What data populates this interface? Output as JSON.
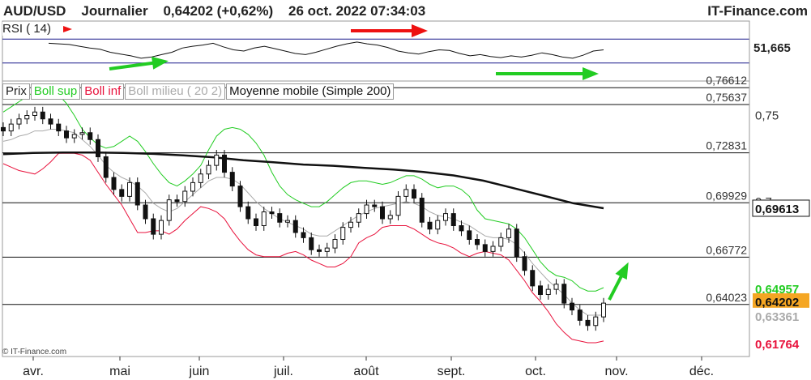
{
  "header": {
    "symbol": "AUD/USD",
    "period": "Journalier",
    "price": "0,64202",
    "change": "(+0,62%)",
    "datetime": "26 oct. 2022 07:34:03",
    "brand": "IT-Finance.com"
  },
  "rsi": {
    "label": "RSI ( 14)",
    "value": "51,665"
  },
  "legend": {
    "prix": "Prix",
    "boll_sup": "Boll sup",
    "boll_inf": "Boll inf",
    "boll_milieu": "Boll milieu ( 20 2)",
    "mm": "Moyenne mobile (Simple 200)"
  },
  "copyright": "© IT-Finance.com",
  "colors": {
    "boll_sup": "#22cc22",
    "boll_inf": "#e8123c",
    "boll_mid": "#aaaaaa",
    "mm200": "#111111",
    "rsi_level": "#1a1a8c",
    "arrow_green": "#22cc22",
    "arrow_red": "#ee1111",
    "price_tag": "#f5a623"
  },
  "chart_data": {
    "type": "candlestick",
    "x_ticks": [
      "avr.",
      "mai",
      "juin",
      "juil.",
      "août",
      "sept.",
      "oct.",
      "nov.",
      "déc."
    ],
    "y_ticks": [
      "0,75",
      "0,7"
    ],
    "levels": [
      "0,76612",
      "0,75637",
      "0,72831",
      "0,69929",
      "0,66772",
      "0,64023"
    ],
    "level_values": [
      0.76612,
      0.75637,
      0.72831,
      0.69929,
      0.66772,
      0.64023
    ],
    "price_tags": [
      {
        "label": "0,69613",
        "value": 0.69613,
        "kind": "mm200"
      },
      {
        "label": "0,64957",
        "value": 0.64957,
        "kind": "boll_sup"
      },
      {
        "label": "0,64202",
        "value": 0.64202,
        "kind": "price"
      },
      {
        "label": "0,63361",
        "value": 0.63361,
        "kind": "boll_mid"
      },
      {
        "label": "0,61764",
        "value": 0.61764,
        "kind": "boll_inf"
      }
    ],
    "y_range": [
      0.61,
      0.77
    ],
    "close_path": [
      0.741,
      0.745,
      0.748,
      0.75,
      0.752,
      0.748,
      0.745,
      0.741,
      0.737,
      0.739,
      0.74,
      0.736,
      0.726,
      0.714,
      0.707,
      0.703,
      0.711,
      0.698,
      0.69,
      0.681,
      0.689,
      0.701,
      0.7,
      0.706,
      0.711,
      0.716,
      0.721,
      0.727,
      0.717,
      0.709,
      0.697,
      0.69,
      0.686,
      0.694,
      0.693,
      0.688,
      0.689,
      0.682,
      0.679,
      0.672,
      0.671,
      0.673,
      0.678,
      0.685,
      0.688,
      0.693,
      0.698,
      0.697,
      0.69,
      0.692,
      0.703,
      0.707,
      0.702,
      0.688,
      0.684,
      0.689,
      0.693,
      0.686,
      0.683,
      0.678,
      0.675,
      0.671,
      0.674,
      0.679,
      0.684,
      0.668,
      0.66,
      0.651,
      0.646,
      0.649,
      0.652,
      0.641,
      0.637,
      0.631,
      0.628,
      0.633,
      0.641
    ],
    "boll_sup_path": [
      0.752,
      0.755,
      0.758,
      0.761,
      0.764,
      0.765,
      0.764,
      0.762,
      0.757,
      0.75,
      0.742,
      0.737,
      0.733,
      0.731,
      0.732,
      0.735,
      0.738,
      0.735,
      0.729,
      0.722,
      0.716,
      0.711,
      0.709,
      0.712,
      0.716,
      0.721,
      0.73,
      0.738,
      0.742,
      0.743,
      0.742,
      0.739,
      0.734,
      0.727,
      0.717,
      0.709,
      0.704,
      0.701,
      0.699,
      0.697,
      0.697,
      0.7,
      0.704,
      0.708,
      0.711,
      0.712,
      0.712,
      0.711,
      0.71,
      0.711,
      0.713,
      0.715,
      0.715,
      0.713,
      0.71,
      0.708,
      0.709,
      0.709,
      0.707,
      0.703,
      0.695,
      0.69,
      0.689,
      0.688,
      0.687,
      0.684,
      0.679,
      0.672,
      0.665,
      0.66,
      0.657,
      0.656,
      0.654,
      0.65,
      0.648,
      0.648,
      0.65
    ],
    "boll_mid_path": [
      0.735,
      0.736,
      0.738,
      0.739,
      0.741,
      0.741,
      0.742,
      0.742,
      0.741,
      0.74,
      0.736,
      0.732,
      0.727,
      0.721,
      0.717,
      0.714,
      0.712,
      0.709,
      0.705,
      0.699,
      0.696,
      0.694,
      0.696,
      0.7,
      0.704,
      0.708,
      0.712,
      0.714,
      0.714,
      0.713,
      0.71,
      0.705,
      0.7,
      0.696,
      0.693,
      0.69,
      0.688,
      0.686,
      0.684,
      0.681,
      0.68,
      0.68,
      0.683,
      0.686,
      0.689,
      0.692,
      0.694,
      0.696,
      0.697,
      0.698,
      0.699,
      0.7,
      0.699,
      0.697,
      0.694,
      0.692,
      0.691,
      0.69,
      0.688,
      0.686,
      0.683,
      0.68,
      0.679,
      0.679,
      0.678,
      0.675,
      0.67,
      0.664,
      0.659,
      0.654,
      0.65,
      0.646,
      0.641,
      0.637,
      0.634,
      0.634,
      0.634
    ],
    "boll_inf_path": [
      0.722,
      0.72,
      0.718,
      0.717,
      0.716,
      0.719,
      0.723,
      0.728,
      0.728,
      0.728,
      0.727,
      0.724,
      0.717,
      0.71,
      0.704,
      0.698,
      0.69,
      0.682,
      0.682,
      0.683,
      0.683,
      0.681,
      0.684,
      0.689,
      0.693,
      0.697,
      0.696,
      0.694,
      0.69,
      0.683,
      0.677,
      0.672,
      0.669,
      0.668,
      0.668,
      0.668,
      0.67,
      0.671,
      0.669,
      0.666,
      0.664,
      0.662,
      0.662,
      0.664,
      0.668,
      0.676,
      0.679,
      0.681,
      0.685,
      0.686,
      0.686,
      0.686,
      0.684,
      0.681,
      0.678,
      0.676,
      0.675,
      0.673,
      0.67,
      0.668,
      0.67,
      0.671,
      0.67,
      0.669,
      0.666,
      0.66,
      0.654,
      0.647,
      0.642,
      0.636,
      0.629,
      0.624,
      0.62,
      0.619,
      0.618,
      0.618,
      0.619
    ],
    "mm200_path": [
      0.7275,
      0.7282,
      0.7285,
      0.7285,
      0.7282,
      0.7277,
      0.7268,
      0.7257,
      0.724,
      0.7228,
      0.7215,
      0.7208,
      0.7196,
      0.7186,
      0.7172,
      0.7152,
      0.7121,
      0.7078,
      0.7034,
      0.699,
      0.6961
    ],
    "rsi_path": [
      63,
      62,
      61,
      58,
      55,
      53,
      48,
      45,
      42,
      38,
      40,
      44,
      48,
      55,
      58,
      60,
      63,
      57,
      52,
      50,
      55,
      58,
      54,
      50,
      46,
      44,
      48,
      53,
      58,
      62,
      65,
      62,
      60,
      56,
      50,
      47,
      45,
      49,
      52,
      51,
      46,
      42,
      44,
      41,
      39,
      42,
      40,
      43,
      47,
      44,
      40,
      38,
      43,
      50,
      52
    ],
    "rsi_levels": [
      70,
      30
    ]
  }
}
